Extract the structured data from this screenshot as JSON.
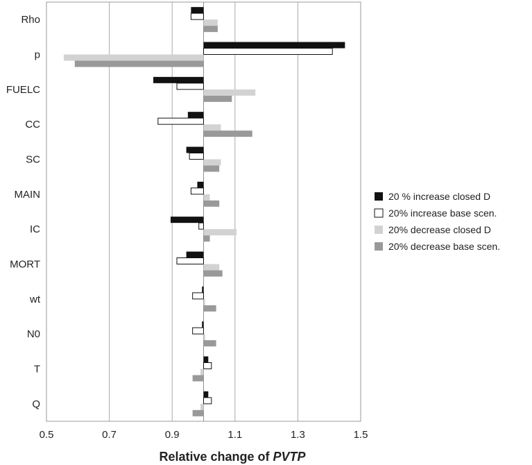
{
  "chart_data": {
    "type": "bar",
    "orientation": "horizontal",
    "baseline": 1.0,
    "categories": [
      "Rho",
      "p",
      "FUELC",
      "CC",
      "SC",
      "MAIN",
      "IC",
      "MORT",
      "wt",
      "N0",
      "T",
      "Q"
    ],
    "series": [
      {
        "name": "20 % increase closed D",
        "color": "#111111",
        "values": [
          0.96,
          1.45,
          0.84,
          0.95,
          0.945,
          0.98,
          0.895,
          0.945,
          0.995,
          0.995,
          1.015,
          1.015
        ]
      },
      {
        "name": "20% increase base scen.",
        "color": "#ffffff",
        "values": [
          0.96,
          1.41,
          0.915,
          0.855,
          0.955,
          0.96,
          0.985,
          0.915,
          0.965,
          0.965,
          1.025,
          1.025
        ]
      },
      {
        "name": "20% decrease closed D",
        "color": "#d2d2d2",
        "values": [
          1.045,
          0.555,
          1.165,
          1.055,
          1.055,
          1.02,
          1.105,
          1.05,
          1.005,
          1.005,
          0.99,
          0.99
        ]
      },
      {
        "name": "20% decrease base scen.",
        "color": "#999999",
        "values": [
          1.045,
          0.59,
          1.09,
          1.155,
          1.05,
          1.05,
          1.02,
          1.06,
          1.04,
          1.04,
          0.965,
          0.965
        ]
      }
    ],
    "xlim": [
      0.5,
      1.5
    ],
    "x_ticks": [
      "0.5",
      "0.7",
      "0.9",
      "1.1",
      "1.3",
      "1.5"
    ],
    "x_tick_values": [
      0.5,
      0.7,
      0.9,
      1.1,
      1.3,
      1.5
    ],
    "xlabel_prefix": "Relative change of ",
    "xlabel_emphasis": "PVTP",
    "grid": "vertical",
    "legend_position": "right"
  }
}
